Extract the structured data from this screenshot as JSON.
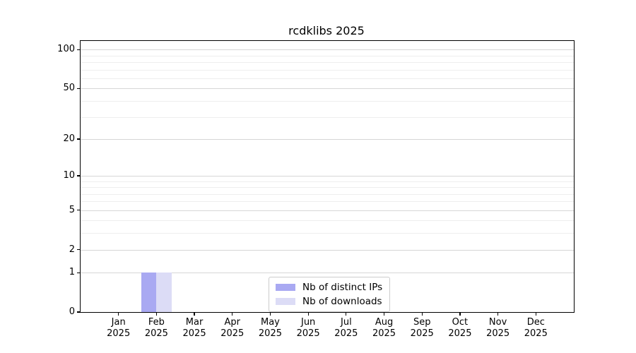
{
  "chart_data": {
    "type": "bar",
    "title": "rcdklibs 2025",
    "categories": [
      "Jan",
      "Feb",
      "Mar",
      "Apr",
      "May",
      "Jun",
      "Jul",
      "Aug",
      "Sep",
      "Oct",
      "Nov",
      "Dec"
    ],
    "category_year": "2025",
    "series": [
      {
        "name": "Nb of distinct IPs",
        "color": "#a9a9f2",
        "values": [
          0,
          1,
          0,
          0,
          0,
          0,
          0,
          0,
          0,
          0,
          0,
          0
        ]
      },
      {
        "name": "Nb of downloads",
        "color": "#dcdcf6",
        "values": [
          0,
          1,
          0,
          0,
          0,
          0,
          0,
          0,
          0,
          0,
          0,
          0
        ]
      }
    ],
    "y_axis": {
      "scale": "log1p",
      "major_ticks": [
        0,
        1,
        2,
        5,
        10,
        20,
        50,
        100
      ],
      "minor_ticks": [
        3,
        4,
        6,
        7,
        8,
        9,
        30,
        40,
        60,
        70,
        80,
        90
      ],
      "ylim": [
        0,
        117
      ]
    },
    "x_axis": {
      "tick_label_lines": 2
    },
    "grid": {
      "major_color": "#d6d6d6",
      "minor_color": "#eeeeee",
      "vertical": false
    },
    "legend": {
      "position": "lower-center",
      "border_color": "#cccccc"
    },
    "bar_width_fraction": 0.4
  }
}
